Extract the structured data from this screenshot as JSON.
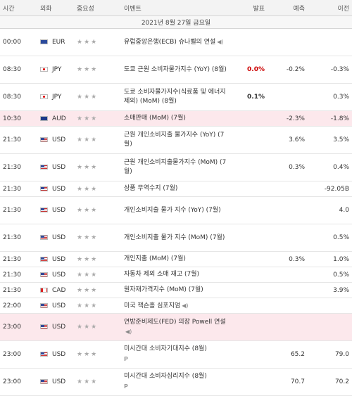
{
  "headers": {
    "time": "시간",
    "currency": "외화",
    "importance": "중요성",
    "event": "이벤트",
    "actual": "발표",
    "forecast": "예측",
    "previous": "이전"
  },
  "date_label": "2021년 8월 27일 금요일",
  "rows": [
    {
      "time": "00:00",
      "cur": "EUR",
      "stars": "★★★",
      "event": "유럽중앙은행(ECB) 슈나벨의 연설",
      "icon": "speaker-icon",
      "actual": "",
      "forecast": "",
      "previous": "",
      "hl": false
    },
    {
      "time": "08:30",
      "cur": "JPY",
      "stars": "★★★",
      "event": "도쿄 근원 소비자물가지수 (YoY) (8월)",
      "actual": "0.0%",
      "actual_style": "red",
      "forecast": "-0.2%",
      "previous": "-0.3%",
      "hl": false
    },
    {
      "time": "08:30",
      "cur": "JPY",
      "stars": "★★★",
      "event": "도쿄 소비자물가지수(식료품 및 에너지 제외) (MoM) (8월)",
      "actual": "0.1%",
      "actual_style": "bold",
      "forecast": "",
      "previous": "0.3%",
      "hl": false
    },
    {
      "time": "10:30",
      "cur": "AUD",
      "stars": "★★★",
      "event": "소매판매 (MoM) (7월)",
      "actual": "",
      "forecast": "-2.3%",
      "previous": "-1.8%",
      "hl": true
    },
    {
      "time": "21:30",
      "cur": "USD",
      "stars": "★★★",
      "event": "근원 개인소비지출 물가지수 (YoY) (7월)",
      "actual": "",
      "forecast": "3.6%",
      "previous": "3.5%",
      "hl": false
    },
    {
      "time": "21:30",
      "cur": "USD",
      "stars": "★★★",
      "event": "근원 개인소비지출물가지수 (MoM) (7월)",
      "actual": "",
      "forecast": "0.3%",
      "previous": "0.4%",
      "hl": false
    },
    {
      "time": "21:30",
      "cur": "USD",
      "stars": "★★★",
      "event": "상품 무역수지 (7월)",
      "actual": "",
      "forecast": "",
      "previous": "-92.05B",
      "hl": false
    },
    {
      "time": "21:30",
      "cur": "USD",
      "stars": "★★★",
      "event": "개인소비지출 물가 지수 (YoY) (7월)",
      "actual": "",
      "forecast": "",
      "previous": "4.0",
      "hl": false
    },
    {
      "time": "21:30",
      "cur": "USD",
      "stars": "★★★",
      "event": "개인소비지출 물가 지수 (MoM) (7월)",
      "actual": "",
      "forecast": "",
      "previous": "0.5%",
      "hl": false
    },
    {
      "time": "21:30",
      "cur": "USD",
      "stars": "★★★",
      "event": "개인지출 (MoM) (7월)",
      "actual": "",
      "forecast": "0.3%",
      "previous": "1.0%",
      "hl": false
    },
    {
      "time": "21:30",
      "cur": "USD",
      "stars": "★★★",
      "event": "자동차 제외 소매 재고 (7월)",
      "actual": "",
      "forecast": "",
      "previous": "0.5%",
      "hl": false
    },
    {
      "time": "21:30",
      "cur": "CAD",
      "stars": "★★★",
      "event": "원자재가격지수 (MoM) (7월)",
      "actual": "",
      "forecast": "",
      "previous": "3.9%",
      "hl": false
    },
    {
      "time": "22:00",
      "cur": "USD",
      "stars": "★★★",
      "event": "미국 잭슨홀 심포지엄",
      "icon": "speaker-icon",
      "actual": "",
      "forecast": "",
      "previous": "",
      "hl": false
    },
    {
      "time": "23:00",
      "cur": "USD",
      "stars": "★★★",
      "event": "연방준비제도(FED) 의장 Powell 연설",
      "icon": "speaker-icon",
      "actual": "",
      "forecast": "",
      "previous": "",
      "hl": true
    },
    {
      "time": "23:00",
      "cur": "USD",
      "stars": "★★★",
      "event": "미시간대 소비자기대지수 (8월)",
      "icon2": "P",
      "actual": "",
      "forecast": "65.2",
      "previous": "79.0",
      "hl": false
    },
    {
      "time": "23:00",
      "cur": "USD",
      "stars": "★★★",
      "event": "미시간대 소비자심리지수 (8월)",
      "icon2": "P",
      "actual": "",
      "forecast": "70.7",
      "previous": "70.2",
      "hl": false
    }
  ]
}
